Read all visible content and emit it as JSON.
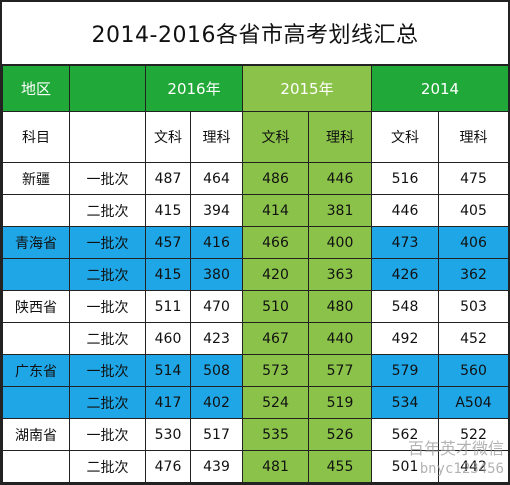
{
  "title": "2014-2016各省市高考划线汇总",
  "header": {
    "region": "地区",
    "years": [
      "2016年",
      "2015年",
      "2014"
    ]
  },
  "subheader": {
    "subject": "科目",
    "arts": "文科",
    "science": "理科"
  },
  "rows": [
    {
      "province": "新疆",
      "batch": "一批次",
      "v": [
        "487",
        "464",
        "486",
        "446",
        "516",
        "475"
      ]
    },
    {
      "province": "",
      "batch": "二批次",
      "v": [
        "415",
        "394",
        "414",
        "381",
        "446",
        "405"
      ]
    },
    {
      "province": "青海省",
      "batch": "一批次",
      "v": [
        "457",
        "416",
        "466",
        "400",
        "473",
        "406"
      ]
    },
    {
      "province": "",
      "batch": "二批次",
      "v": [
        "415",
        "380",
        "420",
        "363",
        "426",
        "362"
      ]
    },
    {
      "province": "陕西省",
      "batch": "一批次",
      "v": [
        "511",
        "470",
        "510",
        "480",
        "548",
        "503"
      ]
    },
    {
      "province": "",
      "batch": "二批次",
      "v": [
        "460",
        "423",
        "467",
        "440",
        "492",
        "452"
      ]
    },
    {
      "province": "广东省",
      "batch": "一批次",
      "v": [
        "514",
        "508",
        "573",
        "577",
        "579",
        "560"
      ]
    },
    {
      "province": "",
      "batch": "二批次",
      "v": [
        "417",
        "402",
        "524",
        "519",
        "534",
        "A504"
      ]
    },
    {
      "province": "湖南省",
      "batch": "一批次",
      "v": [
        "530",
        "517",
        "535",
        "526",
        "562",
        "522"
      ]
    },
    {
      "province": "",
      "batch": "二批次",
      "v": [
        "476",
        "439",
        "481",
        "455",
        "501",
        "442"
      ]
    }
  ],
  "watermark": {
    "line1": "百年英才微信",
    "line2": "bnyc123456"
  },
  "colors": {
    "header_green": "#20a838",
    "col2015_green": "#8bc34a",
    "row_blue": "#1fa6e6"
  }
}
